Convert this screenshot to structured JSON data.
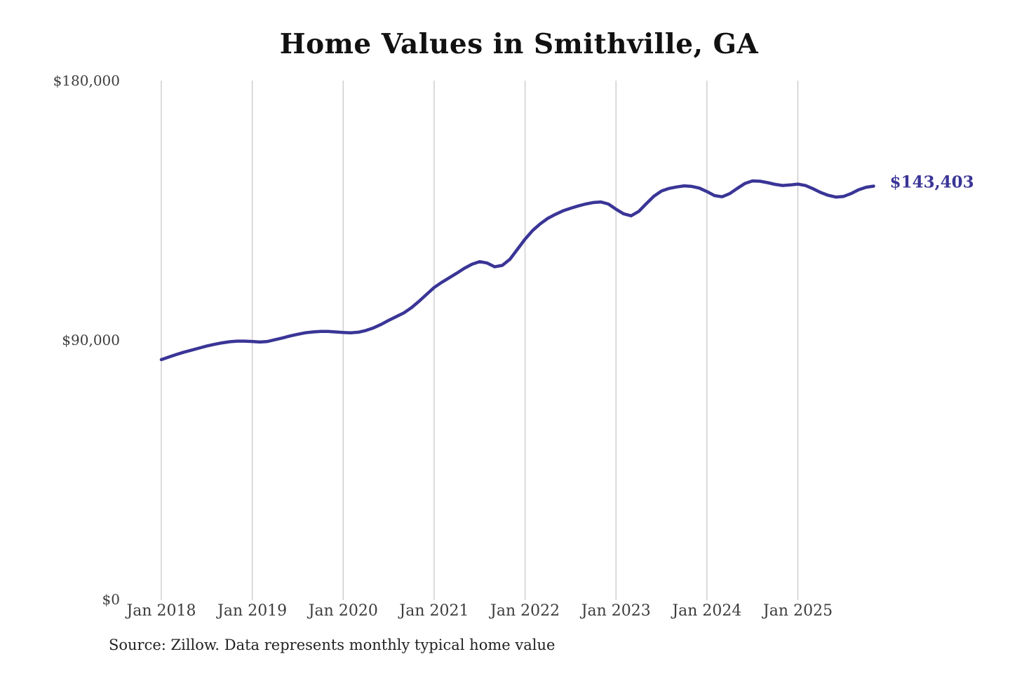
{
  "chart_data": {
    "type": "line",
    "title": "Home Values in Smithville, GA",
    "source_note": "Source: Zillow. Data represents monthly typical home value",
    "series_name": "Monthly typical home value",
    "end_label": "$143,403",
    "end_value": 143403,
    "legend": "none",
    "grid": "vertical-only",
    "ylim": [
      0,
      180000
    ],
    "y_ticks": [
      {
        "label": "$0",
        "value": 0
      },
      {
        "label": "$90,000",
        "value": 90000
      },
      {
        "label": "$180,000",
        "value": 180000
      }
    ],
    "x_ticks": [
      {
        "label": "Jan 2018",
        "month_index": 0
      },
      {
        "label": "Jan 2019",
        "month_index": 12
      },
      {
        "label": "Jan 2020",
        "month_index": 24
      },
      {
        "label": "Jan 2021",
        "month_index": 36
      },
      {
        "label": "Jan 2022",
        "month_index": 48
      },
      {
        "label": "Jan 2023",
        "month_index": 60
      },
      {
        "label": "Jan 2024",
        "month_index": 72
      },
      {
        "label": "Jan 2025",
        "month_index": 84
      }
    ],
    "x": [
      "2018-01",
      "2018-02",
      "2018-03",
      "2018-04",
      "2018-05",
      "2018-06",
      "2018-07",
      "2018-08",
      "2018-09",
      "2018-10",
      "2018-11",
      "2018-12",
      "2019-01",
      "2019-02",
      "2019-03",
      "2019-04",
      "2019-05",
      "2019-06",
      "2019-07",
      "2019-08",
      "2019-09",
      "2019-10",
      "2019-11",
      "2019-12",
      "2020-01",
      "2020-02",
      "2020-03",
      "2020-04",
      "2020-05",
      "2020-06",
      "2020-07",
      "2020-08",
      "2020-09",
      "2020-10",
      "2020-11",
      "2020-12",
      "2021-01",
      "2021-02",
      "2021-03",
      "2021-04",
      "2021-05",
      "2021-06",
      "2021-07",
      "2021-08",
      "2021-09",
      "2021-10",
      "2021-11",
      "2021-12",
      "2022-01",
      "2022-02",
      "2022-03",
      "2022-04",
      "2022-05",
      "2022-06",
      "2022-07",
      "2022-08",
      "2022-09",
      "2022-10",
      "2022-11",
      "2022-12",
      "2023-01",
      "2023-02",
      "2023-03",
      "2023-04",
      "2023-05",
      "2023-06",
      "2023-07",
      "2023-08",
      "2023-09",
      "2023-10",
      "2023-11",
      "2023-12",
      "2024-01",
      "2024-02",
      "2024-03",
      "2024-04",
      "2024-05",
      "2024-06",
      "2024-07",
      "2024-08",
      "2024-09",
      "2024-10",
      "2024-11",
      "2024-12",
      "2025-01",
      "2025-02",
      "2025-03",
      "2025-04",
      "2025-05",
      "2025-06",
      "2025-07",
      "2025-08",
      "2025-09",
      "2025-10",
      "2025-11"
    ],
    "values": [
      83200,
      84100,
      85000,
      85800,
      86500,
      87200,
      87900,
      88500,
      89000,
      89400,
      89600,
      89600,
      89500,
      89300,
      89500,
      90100,
      90700,
      91400,
      92000,
      92500,
      92800,
      93000,
      93000,
      92800,
      92600,
      92500,
      92700,
      93300,
      94200,
      95400,
      96800,
      98100,
      99400,
      101200,
      103400,
      105800,
      108200,
      110000,
      111600,
      113200,
      114900,
      116300,
      117200,
      116700,
      115400,
      115900,
      118000,
      121500,
      125000,
      128000,
      130300,
      132200,
      133600,
      134800,
      135700,
      136500,
      137200,
      137700,
      137900,
      137200,
      135400,
      133800,
      133100,
      134600,
      137300,
      139900,
      141700,
      142600,
      143100,
      143500,
      143300,
      142700,
      141500,
      140100,
      139700,
      140800,
      142600,
      144300,
      145200,
      145100,
      144600,
      144000,
      143600,
      143800,
      144100,
      143600,
      142500,
      141200,
      140200,
      139600,
      139800,
      140800,
      142100,
      143000,
      143403
    ],
    "colors": {
      "line": "#3a3596",
      "grid": "#cccccc",
      "tick_text": "#3d3d3d",
      "title_text": "#111111",
      "source_text": "#222222",
      "background": "#ffffff"
    }
  }
}
